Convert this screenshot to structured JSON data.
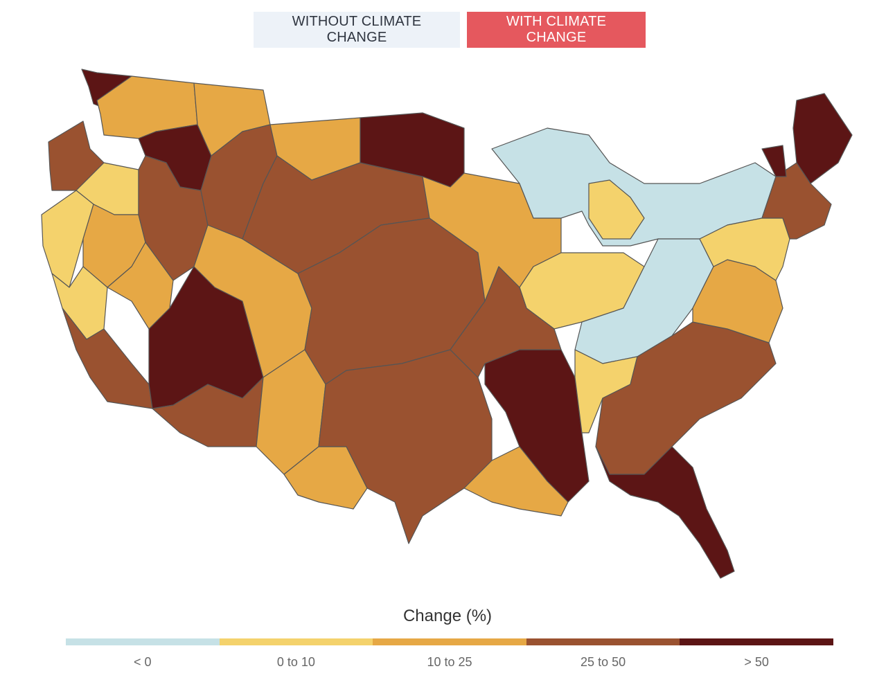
{
  "toggle": {
    "without_label": "WITHOUT CLIMATE CHANGE",
    "with_label": "WITH CLIMATE CHANGE",
    "active": "with",
    "active_color": "#e5585e"
  },
  "map": {
    "border_color": "#555555",
    "regions": [
      {
        "name": "pacific-northwest-coast",
        "category": "25 to 50"
      },
      {
        "name": "puget-sound",
        "category": "> 50"
      },
      {
        "name": "columbia-plateau",
        "category": "10 to 25"
      },
      {
        "name": "oregon-interior",
        "category": "0 to 10"
      },
      {
        "name": "northern-california-coast",
        "category": "0 to 10"
      },
      {
        "name": "sierra-nevada",
        "category": "10 to 25"
      },
      {
        "name": "central-valley",
        "category": "0 to 10"
      },
      {
        "name": "southern-california",
        "category": "25 to 50"
      },
      {
        "name": "snake-river",
        "category": "> 50"
      },
      {
        "name": "idaho-montana-west",
        "category": "10 to 25"
      },
      {
        "name": "great-basin",
        "category": "25 to 50"
      },
      {
        "name": "nevada-west",
        "category": "10 to 25"
      },
      {
        "name": "lower-colorado",
        "category": "> 50"
      },
      {
        "name": "arizona-south",
        "category": "25 to 50"
      },
      {
        "name": "upper-colorado",
        "category": "10 to 25"
      },
      {
        "name": "rocky-mountains",
        "category": "25 to 50"
      },
      {
        "name": "new-mexico-rio-grande",
        "category": "10 to 25"
      },
      {
        "name": "west-texas-pecos",
        "category": "10 to 25"
      },
      {
        "name": "missouri-upper",
        "category": "10 to 25"
      },
      {
        "name": "northern-plains",
        "category": "25 to 50"
      },
      {
        "name": "red-river-north",
        "category": "> 50"
      },
      {
        "name": "central-plains",
        "category": "25 to 50"
      },
      {
        "name": "texas-central",
        "category": "25 to 50"
      },
      {
        "name": "upper-mississippi",
        "category": "10 to 25"
      },
      {
        "name": "illinois-indiana",
        "category": "0 to 10"
      },
      {
        "name": "great-lakes",
        "category": "< 0"
      },
      {
        "name": "lower-michigan",
        "category": "0 to 10"
      },
      {
        "name": "ohio-valley",
        "category": "< 0"
      },
      {
        "name": "lower-mississippi",
        "category": "> 50"
      },
      {
        "name": "arkansas-red",
        "category": "25 to 50"
      },
      {
        "name": "louisiana-gulf",
        "category": "10 to 25"
      },
      {
        "name": "tennessee-alabama",
        "category": "0 to 10"
      },
      {
        "name": "southeast",
        "category": "25 to 50"
      },
      {
        "name": "georgia-florida",
        "category": "> 50"
      },
      {
        "name": "mid-atlantic",
        "category": "10 to 25"
      },
      {
        "name": "pennsylvania-new-york",
        "category": "0 to 10"
      },
      {
        "name": "new-england",
        "category": "25 to 50"
      },
      {
        "name": "vermont-north",
        "category": "> 50"
      },
      {
        "name": "maine",
        "category": "> 50"
      }
    ]
  },
  "legend": {
    "title": "Change (%)",
    "items": [
      {
        "label": "< 0",
        "color": "#c6e1e6"
      },
      {
        "label": "0 to 10",
        "color": "#f4d26c"
      },
      {
        "label": "10 to 25",
        "color": "#e6a845"
      },
      {
        "label": "25 to 50",
        "color": "#9a5230"
      },
      {
        "label": "> 50",
        "color": "#5c1515"
      }
    ]
  }
}
